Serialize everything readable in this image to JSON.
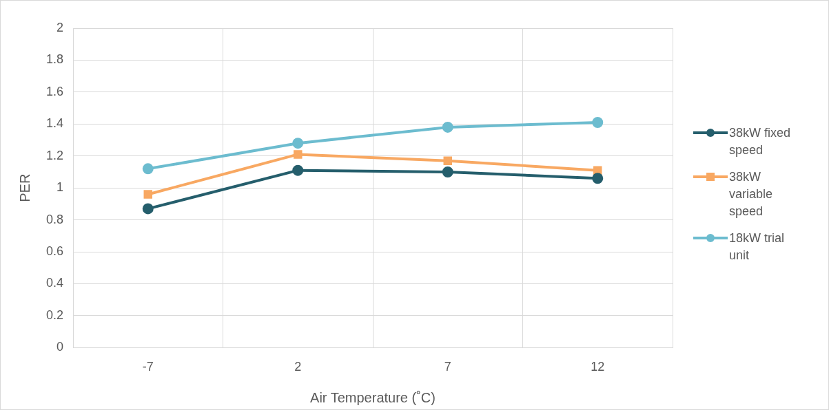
{
  "chart_data": {
    "type": "line",
    "xlabel": "Air Temperature (˚C)",
    "ylabel": "PER",
    "categories": [
      "-7",
      "2",
      "7",
      "12"
    ],
    "series": [
      {
        "name": "38kW fixed speed",
        "color": "#255e6c",
        "marker": "circle",
        "values": [
          0.87,
          1.11,
          1.1,
          1.06
        ]
      },
      {
        "name": "38kW variable speed",
        "color": "#f8a862",
        "marker": "square",
        "values": [
          0.96,
          1.21,
          1.17,
          1.11
        ]
      },
      {
        "name": "18kW trial unit",
        "color": "#6cbccf",
        "marker": "circle",
        "values": [
          1.12,
          1.28,
          1.38,
          1.41
        ]
      }
    ],
    "ylim": [
      0,
      2
    ],
    "yticks": [
      0,
      0.2,
      0.4,
      0.6,
      0.8,
      1,
      1.2,
      1.4,
      1.6,
      1.8,
      2
    ],
    "grid": true,
    "legend": "right"
  }
}
